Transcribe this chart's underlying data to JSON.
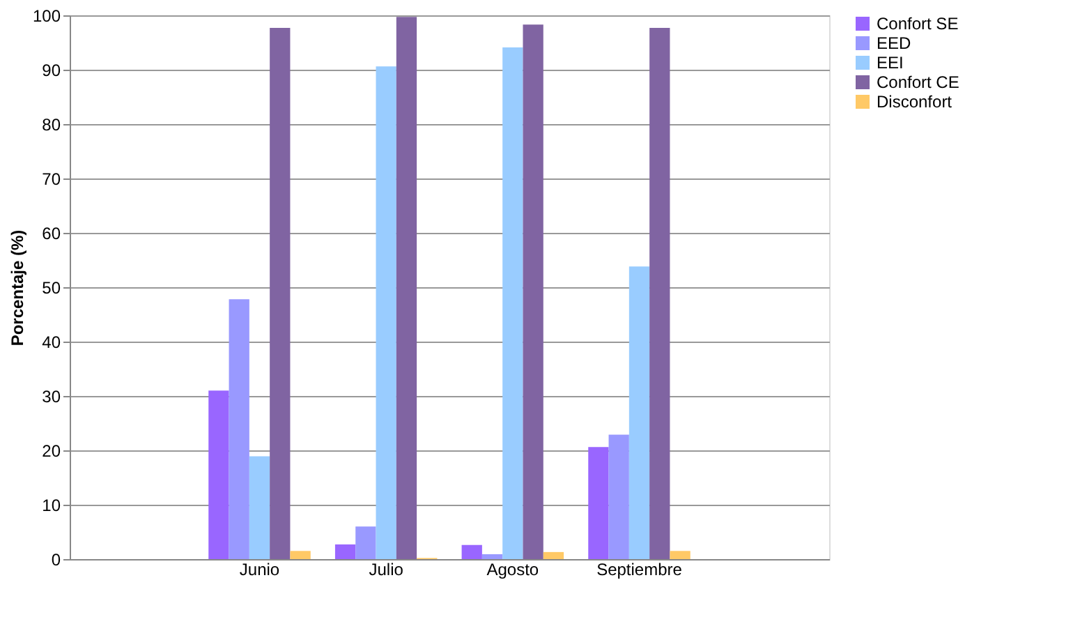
{
  "chart_data": {
    "type": "bar",
    "ylabel": "Porcentaje (%)",
    "categories": [
      null,
      "Junio",
      "Julio",
      "Agosto",
      "Septiembre",
      null
    ],
    "series": [
      {
        "name": "Confort SE",
        "color": "#9966ff",
        "values": [
          null,
          31.0,
          2.7,
          2.6,
          20.6,
          null
        ]
      },
      {
        "name": "EED",
        "color": "#9999ff",
        "values": [
          null,
          47.8,
          6.0,
          0.9,
          22.9,
          null
        ]
      },
      {
        "name": "EEI",
        "color": "#99ccff",
        "values": [
          null,
          18.9,
          90.6,
          94.1,
          53.8,
          null
        ]
      },
      {
        "name": "Confort CE",
        "color": "#8064a2",
        "values": [
          null,
          97.7,
          99.7,
          98.3,
          97.7,
          null
        ]
      },
      {
        "name": "Disconfort",
        "color": "#ffc966",
        "values": [
          null,
          1.5,
          0.2,
          1.3,
          1.5,
          null
        ]
      }
    ],
    "ylim": [
      0,
      100
    ],
    "yticks": [
      0,
      10,
      20,
      30,
      40,
      50,
      60,
      70,
      80,
      90,
      100
    ],
    "grid": "y",
    "legend": "right"
  }
}
